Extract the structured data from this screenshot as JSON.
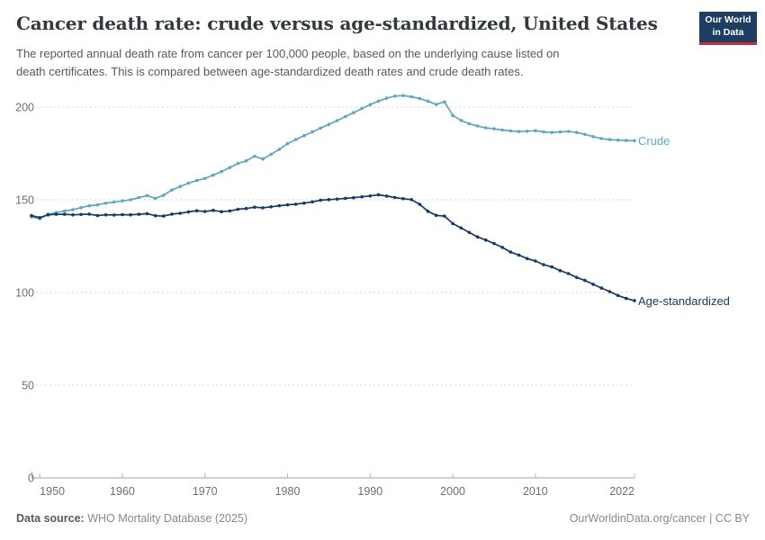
{
  "header": {
    "title": "Cancer death rate: crude versus age-standardized, United States",
    "subtitle_line1": "The reported annual death rate from cancer per 100,000 people, based on the underlying cause listed on",
    "subtitle_line2": "death certificates. This is compared between age-standardized death rates and crude death rates.",
    "logo": {
      "line1": "Our World",
      "line2": "in Data"
    }
  },
  "series_labels": {
    "crude": "Crude",
    "age_standardized": "Age-standardized"
  },
  "footer": {
    "source_label": "Data source:",
    "source_value": " WHO Mortality Database (2025)",
    "attribution": "OurWorldinData.org/cancer | CC BY"
  },
  "colors": {
    "crude": "#60a7be",
    "age_standardized": "#173a63",
    "grid": "#d6d6d6",
    "axis": "#a0a0a0",
    "tick_mark": "#b8b8b8",
    "tick_text": "#6f6f6f",
    "logo_bg": "#1d3d63",
    "logo_red": "#c22f3f"
  },
  "chart_data": {
    "type": "line",
    "title": "Cancer death rate: crude versus age-standardized, United States",
    "xlabel": "",
    "ylabel": "",
    "xlim": [
      1949,
      2022
    ],
    "ylim": [
      0,
      210
    ],
    "grid": "horizontal-dashed",
    "legend_position": "end-of-line-labels",
    "xticks": [
      1950,
      1960,
      1970,
      1980,
      1990,
      2000,
      2010,
      2022
    ],
    "yticks": [
      0,
      50,
      100,
      150,
      200
    ],
    "x": [
      1949,
      1950,
      1951,
      1952,
      1953,
      1954,
      1955,
      1956,
      1957,
      1958,
      1959,
      1960,
      1961,
      1962,
      1963,
      1964,
      1965,
      1966,
      1967,
      1968,
      1969,
      1970,
      1971,
      1972,
      1973,
      1974,
      1975,
      1976,
      1977,
      1978,
      1979,
      1980,
      1981,
      1982,
      1983,
      1984,
      1985,
      1986,
      1987,
      1988,
      1989,
      1990,
      1991,
      1992,
      1993,
      1994,
      1995,
      1996,
      1997,
      1998,
      1999,
      2000,
      2001,
      2002,
      2003,
      2004,
      2005,
      2006,
      2007,
      2008,
      2009,
      2010,
      2011,
      2012,
      2013,
      2014,
      2015,
      2016,
      2017,
      2018,
      2019,
      2020,
      2021,
      2022
    ],
    "series": [
      {
        "name": "Crude",
        "color": "#60a7be",
        "values": [
          140.8,
          139.8,
          142.2,
          143.1,
          144.0,
          144.6,
          145.8,
          146.8,
          147.3,
          148.2,
          148.8,
          149.4,
          150.0,
          151.2,
          152.3,
          150.8,
          152.5,
          155.3,
          157.2,
          159.0,
          160.4,
          161.5,
          163.3,
          165.2,
          167.4,
          169.6,
          171.0,
          173.5,
          172.0,
          174.5,
          177.2,
          180.3,
          182.5,
          184.6,
          186.6,
          188.7,
          190.7,
          192.7,
          194.9,
          197.0,
          199.2,
          201.3,
          203.2,
          204.8,
          205.9,
          206.2,
          205.6,
          204.6,
          203.2,
          201.4,
          202.8,
          195.5,
          192.8,
          191.0,
          189.8,
          188.8,
          188.3,
          187.6,
          187.2,
          186.8,
          187.0,
          187.3,
          186.6,
          186.3,
          186.6,
          186.9,
          186.3,
          185.3,
          184.1,
          183.0,
          182.5,
          182.2,
          182.0,
          181.9
        ]
      },
      {
        "name": "Age-standardized",
        "color": "#173a63",
        "values": [
          141.5,
          140.4,
          141.9,
          142.2,
          142.2,
          141.9,
          142.1,
          142.3,
          141.5,
          141.9,
          141.8,
          142.0,
          141.9,
          142.2,
          142.5,
          141.4,
          141.2,
          142.3,
          142.7,
          143.5,
          144.1,
          143.7,
          144.3,
          143.6,
          144.0,
          144.9,
          145.3,
          146.0,
          145.7,
          146.2,
          146.8,
          147.3,
          147.6,
          148.2,
          148.9,
          149.8,
          150.1,
          150.4,
          150.8,
          151.1,
          151.6,
          152.1,
          152.7,
          152.0,
          151.2,
          150.6,
          150.1,
          147.5,
          143.8,
          141.6,
          141.2,
          137.2,
          134.8,
          132.4,
          130.0,
          128.3,
          126.4,
          124.3,
          121.8,
          120.2,
          118.3,
          117.0,
          115.0,
          113.8,
          111.8,
          110.2,
          108.1,
          106.5,
          104.4,
          102.4,
          100.5,
          98.4,
          96.8,
          95.6
        ]
      }
    ]
  }
}
